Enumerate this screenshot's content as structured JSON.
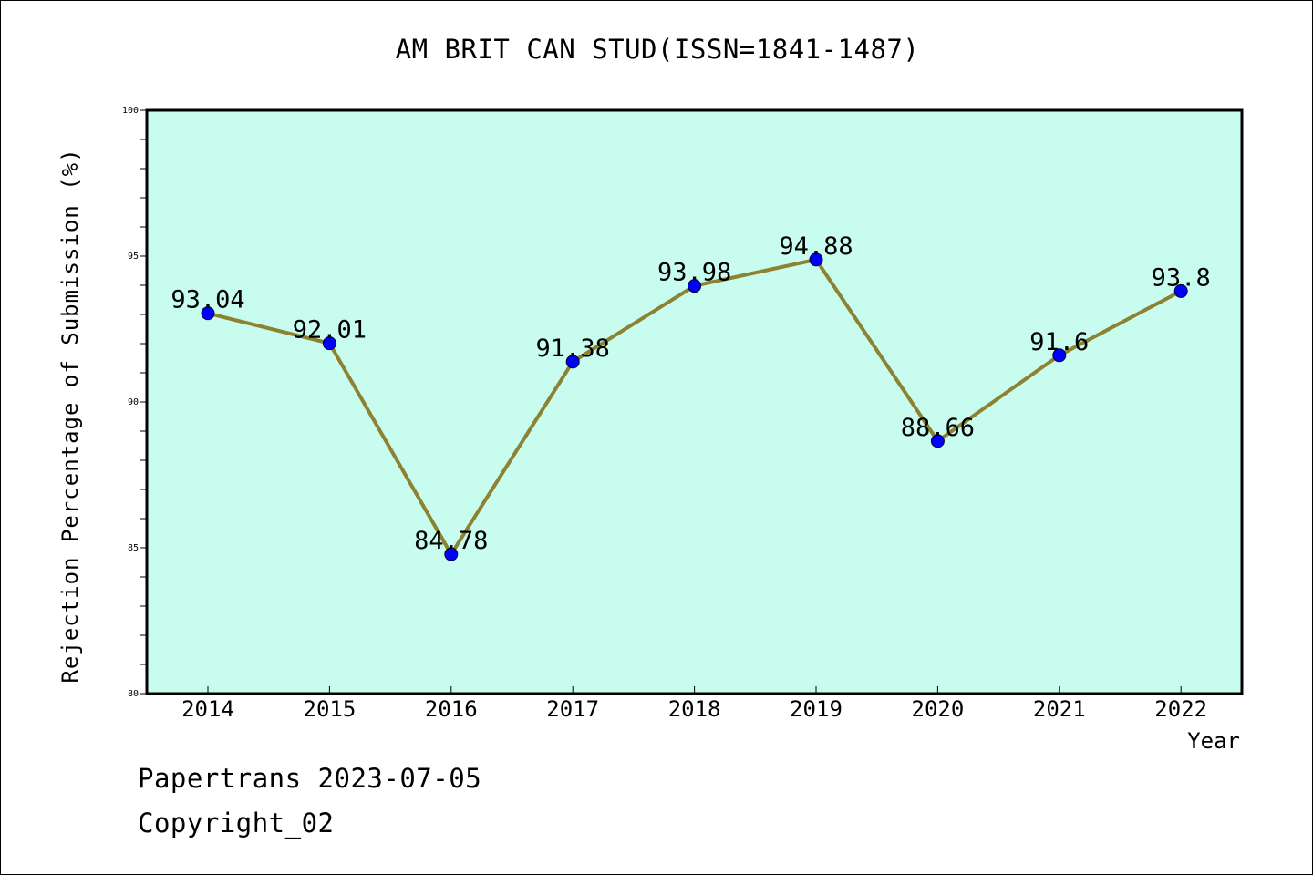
{
  "chart_data": {
    "type": "line",
    "title": "AM BRIT CAN STUD(ISSN=1841-1487)",
    "xlabel": "Year",
    "ylabel": "Rejection Percentage of Submission (%)",
    "categories": [
      "2014",
      "2015",
      "2016",
      "2017",
      "2018",
      "2019",
      "2020",
      "2021",
      "2022"
    ],
    "values": [
      93.04,
      92.01,
      84.78,
      91.38,
      93.98,
      94.88,
      88.66,
      91.6,
      93.8
    ],
    "data_labels": [
      "93.04",
      "92.01",
      "84.78",
      "91.38",
      "93.98",
      "94.88",
      "88.66",
      "91.6",
      "93.8"
    ],
    "ylim": [
      80,
      100
    ],
    "yticks": [
      80,
      85,
      90,
      95,
      100
    ],
    "grid": false,
    "legend": "none",
    "colors": {
      "plot_background": "#c8fcee",
      "line": "#8c8232",
      "marker": "#0000ff"
    }
  },
  "footer": {
    "date_line": "Papertrans 2023-07-05",
    "copyright_line": "Copyright_02"
  }
}
